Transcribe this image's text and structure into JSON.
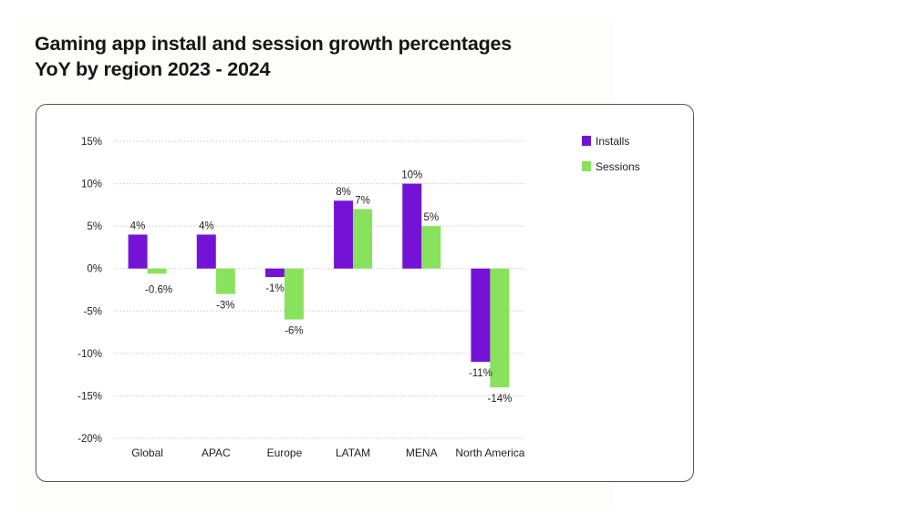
{
  "chart_data": {
    "type": "bar",
    "title_line1": "Gaming app install and session growth percentages",
    "title_line2": "YoY by region 2023 - 2024",
    "xlabel": "",
    "ylabel": "",
    "categories": [
      "Global",
      "APAC",
      "Europe",
      "LATAM",
      "MENA",
      "North America"
    ],
    "series": [
      {
        "name": "Installs",
        "color": "#7413d6",
        "values": [
          4,
          4,
          -1,
          8,
          10,
          -11
        ],
        "labels": [
          "4%",
          "4%",
          "-1%",
          "8%",
          "10%",
          "-11%"
        ]
      },
      {
        "name": "Sessions",
        "color": "#88e25c",
        "values": [
          -0.6,
          -3,
          -6,
          7,
          5,
          -14
        ],
        "labels": [
          "-0.6%",
          "-3%",
          "-6%",
          "7%",
          "5%",
          "-14%"
        ]
      }
    ],
    "ylim": [
      -20,
      15
    ],
    "yticks": [
      15,
      10,
      5,
      0,
      -5,
      -10,
      -15,
      -20
    ],
    "ytick_labels": [
      "15%",
      "10%",
      "5%",
      "0%",
      "-5%",
      "-10%",
      "-15%",
      "-20%"
    ],
    "grid": true,
    "legend_position": "top-right"
  }
}
